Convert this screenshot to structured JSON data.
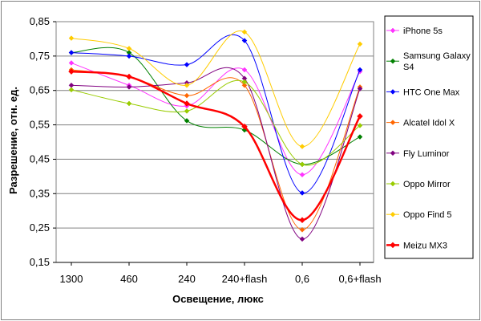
{
  "chart_data": {
    "type": "line",
    "title": "",
    "xlabel": "Освещение, люкс",
    "ylabel": "Разрешение, отн. ед.",
    "categories": [
      "1300",
      "460",
      "240",
      "240+flash",
      "0,6",
      "0,6+flash"
    ],
    "ylim": [
      0.15,
      0.85
    ],
    "yticks": [
      0.15,
      0.25,
      0.35,
      0.45,
      0.55,
      0.65,
      0.75,
      0.85
    ],
    "ytick_labels": [
      "0,15",
      "0,25",
      "0,35",
      "0,45",
      "0,55",
      "0,65",
      "0,75",
      "0,85"
    ],
    "grid": "horizontal",
    "legend": "right",
    "series": [
      {
        "name": "iPhone 5s",
        "color": "#ff33ff",
        "width": 1,
        "values": [
          0.73,
          0.665,
          0.605,
          0.71,
          0.405,
          0.705
        ]
      },
      {
        "name": "Samsung Galaxy S4",
        "legend_lines": [
          "Samsung Galaxy",
          "S4"
        ],
        "color": "#008000",
        "width": 1,
        "values": [
          0.76,
          0.76,
          0.562,
          0.535,
          0.435,
          0.515
        ]
      },
      {
        "name": "HTC One Max",
        "color": "#0000ff",
        "width": 1,
        "values": [
          0.76,
          0.75,
          0.725,
          0.795,
          0.352,
          0.71
        ]
      },
      {
        "name": "Alcatel Idol X",
        "color": "#ff6600",
        "width": 1,
        "values": [
          0.71,
          0.69,
          0.635,
          0.665,
          0.245,
          0.66
        ]
      },
      {
        "name": "Fly Luminor",
        "color": "#800080",
        "width": 1,
        "values": [
          0.665,
          0.66,
          0.672,
          0.685,
          0.218,
          0.655
        ]
      },
      {
        "name": "Oppo Mirror",
        "color": "#99cc00",
        "width": 1,
        "values": [
          0.652,
          0.612,
          0.59,
          0.675,
          0.435,
          0.548
        ]
      },
      {
        "name": "Oppo Find 5",
        "color": "#ffcc00",
        "width": 1,
        "values": [
          0.802,
          0.772,
          0.665,
          0.82,
          0.487,
          0.785
        ]
      },
      {
        "name": "Meizu MX3",
        "color": "#ff0000",
        "width": 2.5,
        "values": [
          0.705,
          0.69,
          0.612,
          0.545,
          0.273,
          0.575
        ]
      }
    ]
  }
}
